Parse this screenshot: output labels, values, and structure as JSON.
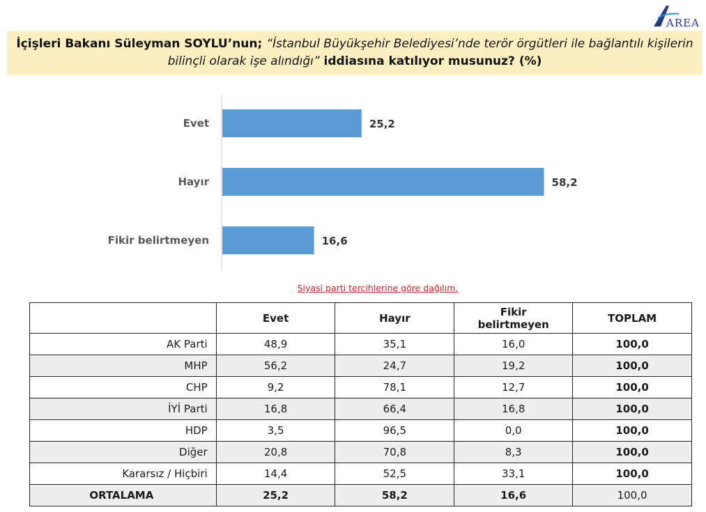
{
  "brand": {
    "logo_text": "AREA",
    "logo_icon": "area-logo-icon",
    "logo_color": "#2b3a78"
  },
  "question": {
    "lead": "İçişleri Bakanı Süleyman SOYLU’nun; ",
    "quote": "“İstanbul Büyükşehir Belediyesi’nde terör örgütleri ile bağlantılı kişilerin bilinçli olarak işe alındığı”",
    "tail": " iddiasına katılıyor musunuz? (%)"
  },
  "chart_data": {
    "type": "bar",
    "orientation": "horizontal",
    "categories": [
      "Evet",
      "Hayır",
      "Fikir belirtmeyen"
    ],
    "values": [
      25.2,
      58.2,
      16.6
    ],
    "value_labels": [
      "25,2",
      "58,2",
      "16,6"
    ],
    "xlim": [
      0,
      100
    ],
    "grid": false,
    "bar_color": "#5b9bd5"
  },
  "table": {
    "subtitle": "Siyasi parti tercihlerine göre dağılım.",
    "headers": [
      "",
      "Evet",
      "Hayır",
      "Fikir belirtmeyen",
      "TOPLAM"
    ],
    "rows": [
      {
        "name": "AK Parti",
        "evet": "48,9",
        "hayir": "35,1",
        "fikir": "16,0",
        "toplam": "100,0"
      },
      {
        "name": "MHP",
        "evet": "56,2",
        "hayir": "24,7",
        "fikir": "19,2",
        "toplam": "100,0"
      },
      {
        "name": "CHP",
        "evet": "9,2",
        "hayir": "78,1",
        "fikir": "12,7",
        "toplam": "100,0"
      },
      {
        "name": "İYİ Parti",
        "evet": "16,8",
        "hayir": "66,4",
        "fikir": "16,8",
        "toplam": "100,0"
      },
      {
        "name": "HDP",
        "evet": "3,5",
        "hayir": "96,5",
        "fikir": "0,0",
        "toplam": "100,0"
      },
      {
        "name": "Diğer",
        "evet": "20,8",
        "hayir": "70,8",
        "fikir": "8,3",
        "toplam": "100,0"
      },
      {
        "name": "Kararsız / Hiçbiri",
        "evet": "14,4",
        "hayir": "52,5",
        "fikir": "33,1",
        "toplam": "100,0"
      }
    ],
    "average": {
      "name": "ORTALAMA",
      "evet": "25,2",
      "hayir": "58,2",
      "fikir": "16,6",
      "toplam": "100,0"
    }
  }
}
